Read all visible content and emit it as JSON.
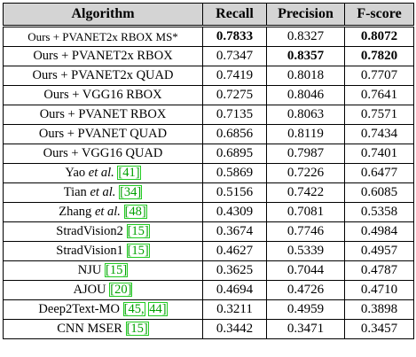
{
  "table": {
    "headers": [
      "Algorithm",
      "Recall",
      "Precision",
      "F-score"
    ],
    "rows": [
      {
        "algo": [
          {
            "t": "Ours + PVANET2x RBOX MS*"
          }
        ],
        "recall": "0.7833",
        "precision": "0.8327",
        "fscore": "0.8072",
        "bold": [
          "recall",
          "fscore"
        ]
      },
      {
        "algo": [
          {
            "t": "Ours + PVANET2x RBOX"
          }
        ],
        "recall": "0.7347",
        "precision": "0.8357",
        "fscore": "0.7820",
        "bold": [
          "precision",
          "fscore"
        ]
      },
      {
        "algo": [
          {
            "t": "Ours + PVANET2x QUAD"
          }
        ],
        "recall": "0.7419",
        "precision": "0.8018",
        "fscore": "0.7707",
        "bold": []
      },
      {
        "algo": [
          {
            "t": "Ours + VGG16 RBOX"
          }
        ],
        "recall": "0.7275",
        "precision": "0.8046",
        "fscore": "0.7641",
        "bold": []
      },
      {
        "algo": [
          {
            "t": "Ours + PVANET RBOX"
          }
        ],
        "recall": "0.7135",
        "precision": "0.8063",
        "fscore": "0.7571",
        "bold": []
      },
      {
        "algo": [
          {
            "t": "Ours + PVANET QUAD"
          }
        ],
        "recall": "0.6856",
        "precision": "0.8119",
        "fscore": "0.7434",
        "bold": []
      },
      {
        "algo": [
          {
            "t": "Ours + VGG16 QUAD"
          }
        ],
        "recall": "0.6895",
        "precision": "0.7987",
        "fscore": "0.7401",
        "bold": []
      },
      {
        "algo": [
          {
            "t": "Yao "
          },
          {
            "t": "et al.",
            "i": true
          },
          {
            "t": " "
          },
          {
            "t": "[41]",
            "c": true
          }
        ],
        "recall": "0.5869",
        "precision": "0.7226",
        "fscore": "0.6477",
        "bold": []
      },
      {
        "algo": [
          {
            "t": "Tian "
          },
          {
            "t": "et al.",
            "i": true
          },
          {
            "t": " "
          },
          {
            "t": "[34]",
            "c": true
          }
        ],
        "recall": "0.5156",
        "precision": "0.7422",
        "fscore": "0.6085",
        "bold": []
      },
      {
        "algo": [
          {
            "t": "Zhang "
          },
          {
            "t": "et al.",
            "i": true
          },
          {
            "t": " "
          },
          {
            "t": "[48]",
            "c": true
          }
        ],
        "recall": "0.4309",
        "precision": "0.7081",
        "fscore": "0.5358",
        "bold": []
      },
      {
        "algo": [
          {
            "t": "StradVision2 "
          },
          {
            "t": "[15]",
            "c": true
          }
        ],
        "recall": "0.3674",
        "precision": "0.7746",
        "fscore": "0.4984",
        "bold": []
      },
      {
        "algo": [
          {
            "t": "StradVision1 "
          },
          {
            "t": "[15]",
            "c": true
          }
        ],
        "recall": "0.4627",
        "precision": "0.5339",
        "fscore": "0.4957",
        "bold": []
      },
      {
        "algo": [
          {
            "t": "NJU "
          },
          {
            "t": "[15]",
            "c": true
          }
        ],
        "recall": "0.3625",
        "precision": "0.7044",
        "fscore": "0.4787",
        "bold": []
      },
      {
        "algo": [
          {
            "t": "AJOU "
          },
          {
            "t": "[20]",
            "c": true
          }
        ],
        "recall": "0.4694",
        "precision": "0.4726",
        "fscore": "0.4710",
        "bold": []
      },
      {
        "algo": [
          {
            "t": "Deep2Text-MO "
          },
          {
            "t": "[45,",
            "c": true
          },
          {
            "t": " "
          },
          {
            "t": "44]",
            "c": true
          }
        ],
        "recall": "0.3211",
        "precision": "0.4959",
        "fscore": "0.3898",
        "bold": []
      },
      {
        "algo": [
          {
            "t": "CNN MSER "
          },
          {
            "t": "[15]",
            "c": true
          }
        ],
        "recall": "0.3442",
        "precision": "0.3471",
        "fscore": "0.3457",
        "bold": []
      }
    ]
  }
}
